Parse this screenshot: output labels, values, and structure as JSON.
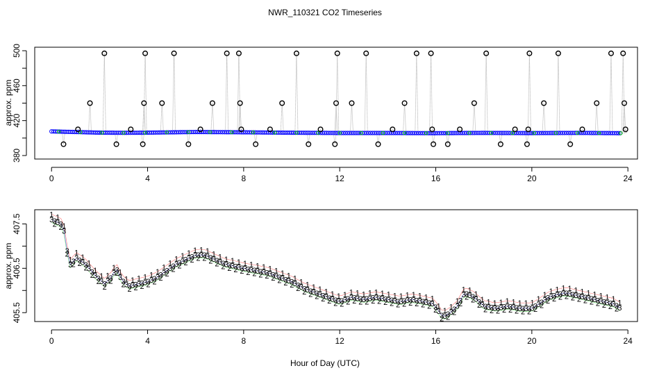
{
  "figure": {
    "title": "NWR_110321  CO2 Timeseries",
    "xlabel": "Hour of Day (UTC)"
  },
  "colors": {
    "series_1": "#ff0000",
    "series_2": "#00cc00",
    "series_3": "#0000ff",
    "top_points": "#000000",
    "top_points_fill": "#00bcd4",
    "connector": "#999999",
    "frame": "#000000"
  },
  "chart_data": [
    {
      "type": "scatter",
      "panel": "top",
      "xlabel": "",
      "ylabel": "approx. ppm",
      "xlim": [
        -0.7,
        24.4
      ],
      "ylim": [
        376,
        504
      ],
      "x_ticks": [
        0,
        4,
        8,
        12,
        16,
        20,
        24
      ],
      "y_ticks": [
        380,
        420,
        460,
        500
      ],
      "y_minor_ticks": [
        400,
        440,
        480
      ],
      "baseline": {
        "x": [
          0.0,
          1.0,
          2.0,
          3.0,
          3.8,
          4.5,
          6.0,
          8.0,
          10.0,
          12.0,
          14.0,
          15.9,
          18.0,
          19.9,
          22.0,
          23.7
        ],
        "y": [
          407.6,
          406.9,
          406.2,
          406.0,
          406.1,
          406.4,
          406.9,
          406.6,
          406.1,
          405.8,
          405.8,
          405.6,
          405.9,
          405.7,
          405.9,
          405.6
        ]
      },
      "outliers": {
        "x": [
          0.5,
          1.1,
          1.6,
          2.2,
          2.7,
          3.3,
          3.8,
          3.85,
          3.9,
          4.6,
          5.1,
          5.7,
          6.2,
          6.7,
          7.3,
          7.8,
          7.85,
          7.9,
          8.5,
          9.1,
          9.6,
          10.2,
          10.7,
          11.2,
          11.8,
          11.85,
          11.9,
          12.5,
          13.1,
          13.6,
          14.2,
          14.7,
          15.2,
          15.8,
          15.85,
          15.9,
          16.5,
          17.0,
          17.6,
          18.1,
          18.7,
          19.3,
          19.8,
          19.85,
          19.9,
          20.5,
          21.1,
          21.6,
          22.1,
          22.7,
          23.3,
          23.8,
          23.85,
          23.9
        ],
        "y": [
          393,
          410,
          440,
          497,
          393,
          410,
          393,
          440,
          497,
          440,
          497,
          393,
          410,
          440,
          497,
          497,
          440,
          410,
          393,
          410,
          440,
          497,
          393,
          410,
          393,
          440,
          497,
          440,
          497,
          393,
          410,
          440,
          497,
          497,
          410,
          393,
          393,
          410,
          440,
          497,
          393,
          410,
          393,
          410,
          497,
          440,
          497,
          393,
          410,
          440,
          497,
          497,
          440,
          410
        ]
      }
    },
    {
      "type": "line",
      "panel": "bottom",
      "xlabel": "Hour of Day (UTC)",
      "ylabel": "approx. ppm",
      "xlim": [
        -0.7,
        24.4
      ],
      "ylim": [
        405.3,
        407.82
      ],
      "x_ticks": [
        0,
        4,
        8,
        12,
        16,
        20,
        24
      ],
      "y_ticks": [
        405.5,
        406.5,
        407.5
      ],
      "y_minor_ticks": [
        406.0,
        407.0
      ],
      "marker_labels": [
        "1",
        "2",
        "3"
      ],
      "series": [
        {
          "name": "1",
          "offset": 0.12
        },
        {
          "name": "2",
          "offset": -0.07
        },
        {
          "name": "3",
          "offset": 0.0
        }
      ],
      "base": {
        "x": [
          0.0,
          0.2,
          0.4,
          0.55,
          0.7,
          0.8,
          1.0,
          1.4,
          1.8,
          2.2,
          2.5,
          2.7,
          2.9,
          3.2,
          3.6,
          4.0,
          4.4,
          4.8,
          5.2,
          5.6,
          6.0,
          6.4,
          6.8,
          7.2,
          7.6,
          8.0,
          8.5,
          9.0,
          9.5,
          10.0,
          10.5,
          11.0,
          11.5,
          12.0,
          12.5,
          13.0,
          13.5,
          14.0,
          14.5,
          15.0,
          15.5,
          15.9,
          16.1,
          16.3,
          16.6,
          16.9,
          17.2,
          17.6,
          18.0,
          18.5,
          19.0,
          19.5,
          20.0,
          20.3,
          20.7,
          21.0,
          21.4,
          21.8,
          22.2,
          22.6,
          23.0,
          23.4,
          23.7
        ],
        "y": [
          407.6,
          407.55,
          407.5,
          407.3,
          406.7,
          406.55,
          406.75,
          406.6,
          406.35,
          406.15,
          406.3,
          406.5,
          406.25,
          406.1,
          406.15,
          406.2,
          406.3,
          406.45,
          406.6,
          406.7,
          406.8,
          406.8,
          406.7,
          406.6,
          406.55,
          406.5,
          406.45,
          406.4,
          406.3,
          406.2,
          406.05,
          405.95,
          405.85,
          405.75,
          405.85,
          405.8,
          405.85,
          405.8,
          405.75,
          405.8,
          405.75,
          405.7,
          405.55,
          405.4,
          405.5,
          405.65,
          405.95,
          405.85,
          405.65,
          405.6,
          405.65,
          405.6,
          405.6,
          405.7,
          405.85,
          405.9,
          405.95,
          405.9,
          405.85,
          405.8,
          405.75,
          405.7,
          405.6
        ]
      }
    }
  ]
}
